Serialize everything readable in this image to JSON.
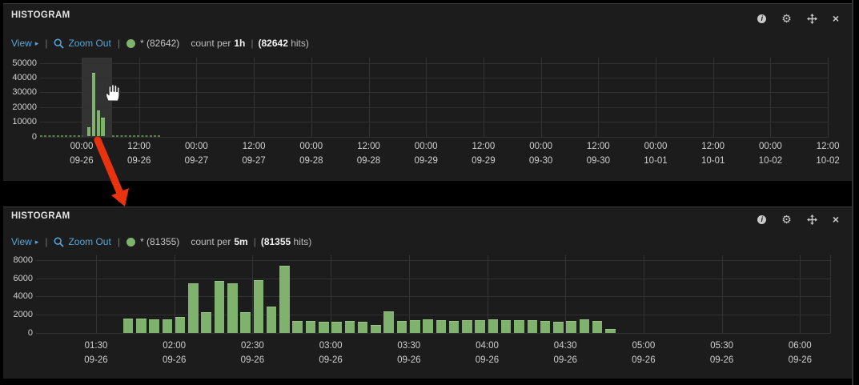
{
  "ui": {
    "separator": "|",
    "caret": "▸",
    "info_glyph": "i",
    "gear_glyph": "⚙",
    "close_glyph": "×"
  },
  "colors": {
    "page_bg": "#000000",
    "panel_bg": "#1c1c1c",
    "bar_green": "#7eb26d",
    "link_blue": "#58a6d8",
    "grid_line": "#313131",
    "axis_text": "#cfcfcf",
    "title_text": "#e2e2e2",
    "arrow_red": "#e8330e",
    "selection_overlay": "rgba(255,255,255,0.10)"
  },
  "panels": [
    {
      "title": "HISTOGRAM",
      "toolbar": {
        "view_label": "View",
        "zoom_out_label": "Zoom Out",
        "series_label": "* (82642)",
        "count_per_label": "count per",
        "interval": "1h",
        "hits_paren": "(",
        "hits_value": "82642",
        "hits_suffix": " hits)"
      },
      "chart_data": {
        "type": "bar",
        "title": "count per 1h",
        "legend": "* (82642)",
        "grid": true,
        "ylim": [
          0,
          50000
        ],
        "yticks": [
          0,
          10000,
          20000,
          30000,
          40000,
          50000
        ],
        "ytick_interval": 10000,
        "x_ticks": [
          {
            "time": "00:00",
            "date": "09-26"
          },
          {
            "time": "12:00",
            "date": "09-26"
          },
          {
            "time": "00:00",
            "date": "09-27"
          },
          {
            "time": "12:00",
            "date": "09-27"
          },
          {
            "time": "00:00",
            "date": "09-28"
          },
          {
            "time": "12:00",
            "date": "09-28"
          },
          {
            "time": "00:00",
            "date": "09-29"
          },
          {
            "time": "12:00",
            "date": "09-29"
          },
          {
            "time": "00:00",
            "date": "09-30"
          },
          {
            "time": "12:00",
            "date": "09-30"
          },
          {
            "time": "00:00",
            "date": "10-01"
          },
          {
            "time": "12:00",
            "date": "10-01"
          },
          {
            "time": "00:00",
            "date": "10-02"
          },
          {
            "time": "12:00",
            "date": "10-02"
          }
        ],
        "bar_unit": "hours-after-first-tick",
        "bars": [
          [
            1,
            6000
          ],
          [
            2,
            43000
          ],
          [
            3,
            17800
          ],
          [
            4,
            13000
          ]
        ],
        "selection": {
          "t1": 0.17,
          "t2": 6.36
        },
        "low_segments": [
          [
            -8.7,
            0.2
          ],
          [
            6.4,
            16.8
          ]
        ],
        "bar_color": "#7eb26d"
      }
    },
    {
      "title": "HISTOGRAM",
      "toolbar": {
        "view_label": "View",
        "zoom_out_label": "Zoom Out",
        "series_label": "* (81355)",
        "count_per_label": "count per",
        "interval": "5m",
        "hits_paren": "(",
        "hits_value": "81355",
        "hits_suffix": " hits)"
      },
      "chart_data": {
        "type": "bar",
        "title": "count per 5m",
        "legend": "* (81355)",
        "grid": true,
        "ylim": [
          0,
          8000
        ],
        "yticks": [
          0,
          2000,
          4000,
          6000,
          8000
        ],
        "ytick_interval": 2000,
        "x_ticks": [
          {
            "time": "01:30",
            "date": "09-26"
          },
          {
            "time": "02:00",
            "date": "09-26"
          },
          {
            "time": "02:30",
            "date": "09-26"
          },
          {
            "time": "03:00",
            "date": "09-26"
          },
          {
            "time": "03:30",
            "date": "09-26"
          },
          {
            "time": "04:00",
            "date": "09-26"
          },
          {
            "time": "04:30",
            "date": "09-26"
          },
          {
            "time": "05:00",
            "date": "09-26"
          },
          {
            "time": "05:30",
            "date": "09-26"
          },
          {
            "time": "06:00",
            "date": "09-26"
          }
        ],
        "bar_unit": "minutes-after-first-tick",
        "bars": [
          [
            10,
            1600
          ],
          [
            15,
            1550
          ],
          [
            20,
            1500
          ],
          [
            25,
            1500
          ],
          [
            30,
            1750
          ],
          [
            35,
            5400
          ],
          [
            40,
            2250
          ],
          [
            45,
            5700
          ],
          [
            50,
            5450
          ],
          [
            55,
            2250
          ],
          [
            60,
            5750
          ],
          [
            65,
            2900
          ],
          [
            70,
            7400
          ],
          [
            75,
            1300
          ],
          [
            80,
            1300
          ],
          [
            85,
            1200
          ],
          [
            90,
            1200
          ],
          [
            95,
            1300
          ],
          [
            100,
            1200
          ],
          [
            105,
            900
          ],
          [
            110,
            2400
          ],
          [
            115,
            1300
          ],
          [
            120,
            1400
          ],
          [
            125,
            1500
          ],
          [
            130,
            1400
          ],
          [
            135,
            1300
          ],
          [
            140,
            1400
          ],
          [
            145,
            1400
          ],
          [
            150,
            1500
          ],
          [
            155,
            1400
          ],
          [
            160,
            1400
          ],
          [
            165,
            1400
          ],
          [
            170,
            1300
          ],
          [
            175,
            1200
          ],
          [
            180,
            1300
          ],
          [
            185,
            1500
          ],
          [
            190,
            1300
          ],
          [
            195,
            400
          ]
        ],
        "bar_color": "#7eb26d"
      }
    }
  ]
}
